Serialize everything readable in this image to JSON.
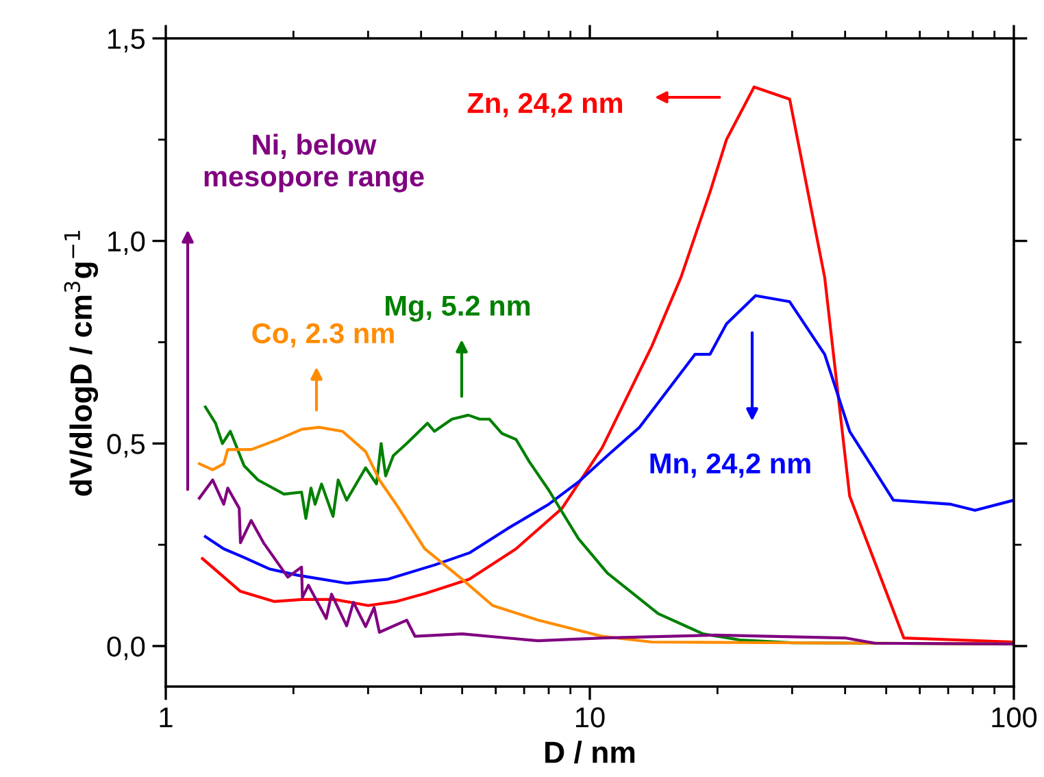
{
  "chart_data": {
    "type": "line",
    "xlabel": "D / nm",
    "ylabel": "dV/dlogD / cm$^{3}$g$^{−1}$",
    "log": "x",
    "xlim": [
      1,
      100
    ],
    "xticks": [
      1,
      10,
      100
    ],
    "ylim": [
      -0.1,
      1.5
    ],
    "yticks": [
      {
        "value": 0,
        "label": "0,0"
      },
      {
        "value": 0.5,
        "label": "0,5"
      },
      {
        "value": 1.0,
        "label": "1,0"
      },
      {
        "value": 1.5,
        "label": "1,5"
      }
    ],
    "grid": false,
    "legend": false,
    "marker": "none",
    "line_style": "solid",
    "series": [
      {
        "color": "#ff0000",
        "x": [
          1.22,
          1.5,
          1.8,
          2.1,
          2.5,
          3.0,
          3.5,
          4.1,
          5.2,
          6.7,
          8.6,
          10.7,
          14,
          16.4,
          19.2,
          21,
          24.4,
          29.6,
          35.8,
          41,
          55,
          100
        ],
        "values": [
          0.216,
          0.135,
          0.11,
          0.115,
          0.115,
          0.1,
          0.11,
          0.13,
          0.165,
          0.24,
          0.34,
          0.49,
          0.74,
          0.91,
          1.12,
          1.25,
          1.38,
          1.35,
          0.91,
          0.37,
          0.02,
          0.01
        ]
      },
      {
        "color": "#0000ff",
        "x": [
          1.24,
          1.37,
          1.52,
          1.76,
          2.04,
          2.67,
          3.34,
          4.3,
          5.2,
          6.4,
          8.0,
          9.4,
          11,
          13.1,
          17.7,
          19.2,
          21,
          24.6,
          29.6,
          35.8,
          41,
          52,
          71,
          81,
          100
        ],
        "values": [
          0.27,
          0.24,
          0.22,
          0.19,
          0.175,
          0.155,
          0.165,
          0.2,
          0.23,
          0.29,
          0.35,
          0.405,
          0.47,
          0.54,
          0.72,
          0.72,
          0.795,
          0.865,
          0.85,
          0.72,
          0.53,
          0.36,
          0.35,
          0.335,
          0.36
        ]
      },
      {
        "color": "#008000",
        "x": [
          1.24,
          1.31,
          1.36,
          1.42,
          1.53,
          1.65,
          1.9,
          2.09,
          2.14,
          2.2,
          2.25,
          2.33,
          2.48,
          2.55,
          2.67,
          2.96,
          3.14,
          3.22,
          3.3,
          3.44,
          3.7,
          4.14,
          4.3,
          4.73,
          5.17,
          5.5,
          5.8,
          6.2,
          6.7,
          7.2,
          8.0,
          9.4,
          11,
          14.5,
          18.5,
          22.6,
          30,
          100
        ],
        "values": [
          0.59,
          0.55,
          0.5,
          0.53,
          0.445,
          0.41,
          0.375,
          0.38,
          0.315,
          0.39,
          0.35,
          0.4,
          0.32,
          0.41,
          0.36,
          0.44,
          0.4,
          0.5,
          0.42,
          0.47,
          0.5,
          0.55,
          0.53,
          0.56,
          0.57,
          0.56,
          0.56,
          0.525,
          0.51,
          0.455,
          0.385,
          0.265,
          0.18,
          0.08,
          0.03,
          0.015,
          0.008,
          0.005
        ]
      },
      {
        "color": "#ff8c00",
        "x": [
          1.2,
          1.29,
          1.37,
          1.4,
          1.59,
          1.84,
          2.09,
          2.3,
          2.61,
          2.96,
          3.19,
          3.52,
          4.08,
          5.0,
          5.9,
          7.55,
          10.7,
          14,
          100
        ],
        "values": [
          0.45,
          0.435,
          0.45,
          0.485,
          0.485,
          0.51,
          0.535,
          0.54,
          0.53,
          0.48,
          0.41,
          0.345,
          0.24,
          0.165,
          0.1,
          0.064,
          0.024,
          0.01,
          0.005
        ]
      },
      {
        "color": "#800080",
        "x": [
          1.2,
          1.29,
          1.37,
          1.4,
          1.49,
          1.5,
          1.59,
          1.7,
          1.94,
          2.09,
          2.1,
          2.17,
          2.39,
          2.46,
          2.67,
          2.77,
          2.96,
          3.1,
          3.19,
          3.7,
          3.87,
          5.0,
          7.55,
          10.7,
          19.8,
          40,
          47,
          100
        ],
        "values": [
          0.365,
          0.41,
          0.35,
          0.39,
          0.34,
          0.255,
          0.31,
          0.255,
          0.17,
          0.195,
          0.12,
          0.15,
          0.068,
          0.128,
          0.05,
          0.108,
          0.048,
          0.095,
          0.034,
          0.064,
          0.024,
          0.03,
          0.013,
          0.02,
          0.027,
          0.02,
          0.007,
          0.005
        ]
      }
    ],
    "annotations": [
      "Zn, 24,2 nm",
      "Mn, 24,2 nm",
      "Mg, 5.2 nm",
      "Co, 2.3 nm",
      "Ni, below\nmesopore range"
    ]
  }
}
